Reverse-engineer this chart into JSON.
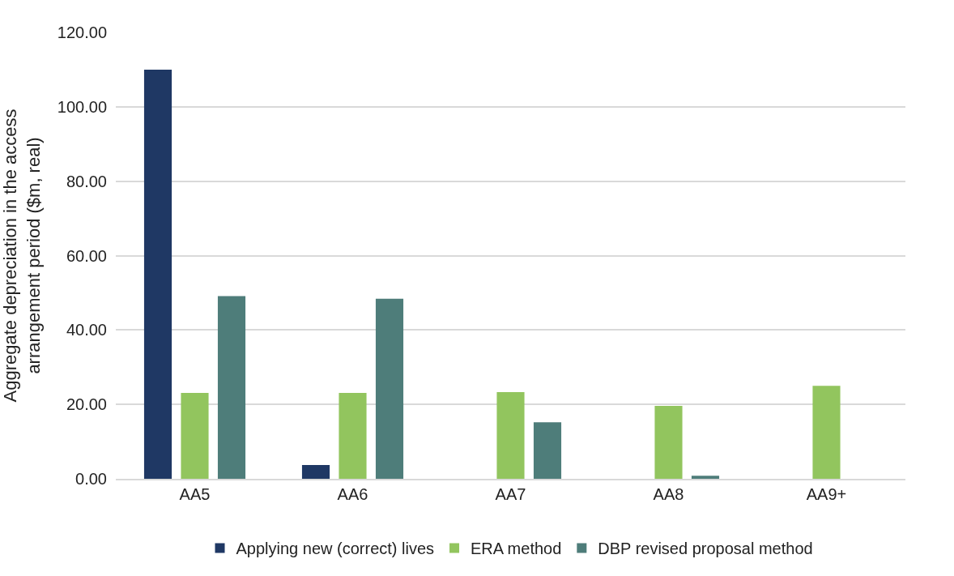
{
  "chart_data": {
    "type": "bar",
    "ylabel": "Aggregate depreciation in the access arrangement period ($m, real)",
    "categories": [
      "AA5",
      "AA6",
      "AA7",
      "AA8",
      "AA9+"
    ],
    "series": [
      {
        "name": "Applying new (correct) lives",
        "color": "#1f3864",
        "values": [
          110,
          3.7,
          0,
          0,
          0
        ]
      },
      {
        "name": "ERA method",
        "color": "#92c55e",
        "values": [
          23.1,
          23.1,
          23.3,
          19.6,
          25.0
        ]
      },
      {
        "name": "DBP revised proposal method",
        "color": "#4e7d7a",
        "values": [
          49.1,
          48.4,
          15.2,
          0.8,
          0
        ]
      }
    ],
    "ylim": [
      0,
      120
    ],
    "yticks": [
      {
        "value": 0,
        "label": "0.00"
      },
      {
        "value": 20,
        "label": "20.00"
      },
      {
        "value": 40,
        "label": "40.00"
      },
      {
        "value": 60,
        "label": "60.00"
      },
      {
        "value": 80,
        "label": "80.00"
      },
      {
        "value": 100,
        "label": "100.00"
      },
      {
        "value": 120,
        "label": "120.00"
      }
    ],
    "grid": "y",
    "legend": "bottom"
  }
}
